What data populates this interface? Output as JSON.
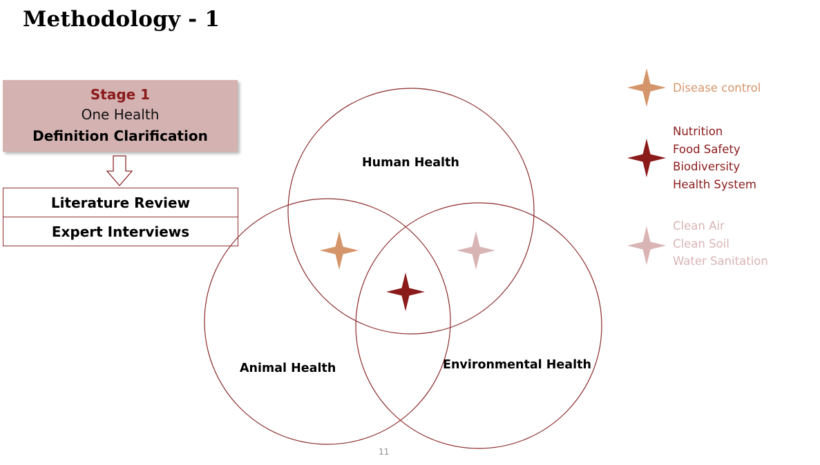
{
  "slide": {
    "title": "Methodology - 1",
    "page_number": "11"
  },
  "stage": {
    "label": "Stage 1",
    "subtitle": "One Health",
    "description": "Definition Clarification"
  },
  "steps": [
    "Literature Review",
    "Expert Interviews"
  ],
  "venn": {
    "circles": [
      "Human Health",
      "Animal Health",
      "Environmental Health"
    ]
  },
  "legend": [
    {
      "items": [
        "Disease control"
      ],
      "color": "#d5956a",
      "icon": "four-point-star-icon"
    },
    {
      "items": [
        "Nutrition",
        "Food Safety",
        "Biodiversity",
        "Health System"
      ],
      "color": "#8b1a1a",
      "icon": "four-point-star-icon"
    },
    {
      "items": [
        "Clean Air",
        "Clean Soil",
        "Water Sanitation"
      ],
      "color": "#d9b4b4",
      "icon": "four-point-star-icon"
    }
  ],
  "colors": {
    "circle_stroke": "#8b2a2a",
    "stage_fill": "#d4b2b2",
    "stage_accent": "#8b1a1a"
  }
}
